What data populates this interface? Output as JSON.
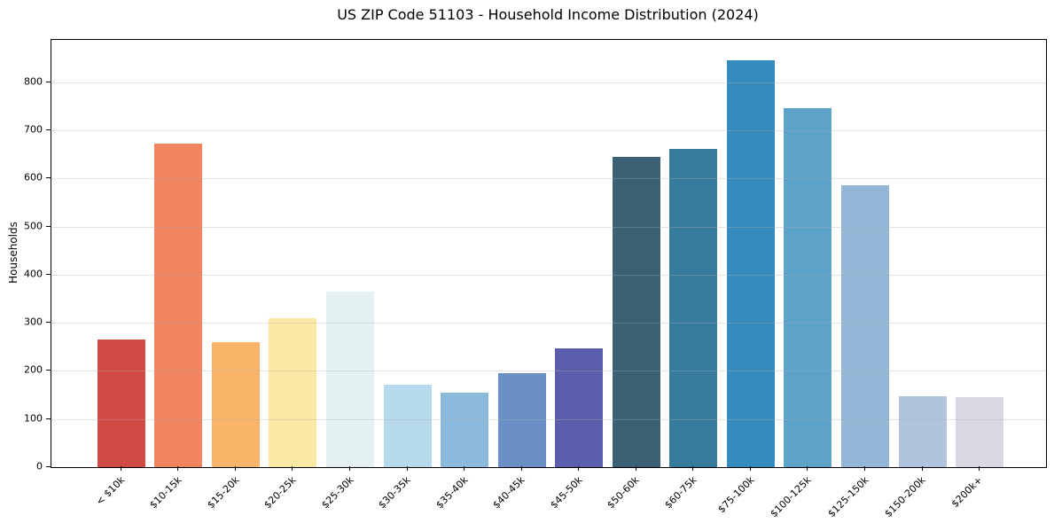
{
  "chart_data": {
    "type": "bar",
    "title": "US ZIP Code 51103 - Household Income Distribution (2024)",
    "xlabel": "",
    "ylabel": "Households",
    "ylim": [
      0,
      888
    ],
    "yticks": [
      0,
      100,
      200,
      300,
      400,
      500,
      600,
      700,
      800
    ],
    "grid": "horizontal",
    "grid_color": "#e9e9e9",
    "axis_color": "#000000",
    "background_color": "#ffffff",
    "legend": "none",
    "categories": [
      "< $10k",
      "$10-15k",
      "$15-20k",
      "$20-25k",
      "$25-30k",
      "$30-35k",
      "$35-40k",
      "$40-45k",
      "$45-50k",
      "$50-60k",
      "$60-75k",
      "$75-100k",
      "$100-125k",
      "$125-150k",
      "$150-200k",
      "$200k+"
    ],
    "values": [
      265,
      672,
      259,
      310,
      365,
      172,
      155,
      196,
      247,
      645,
      662,
      845,
      746,
      585,
      148,
      146
    ],
    "bar_colors": [
      "#d14b45",
      "#f1845f",
      "#f9b46a",
      "#fce8a5",
      "#e3f1f2",
      "#b6d9eb",
      "#8cbadc",
      "#6a8fc4",
      "#5b5ead",
      "#3a6073",
      "#377b9c",
      "#348bbd",
      "#5ea4c9",
      "#93b7d7",
      "#b0c4de",
      "#d8d7e4"
    ]
  }
}
